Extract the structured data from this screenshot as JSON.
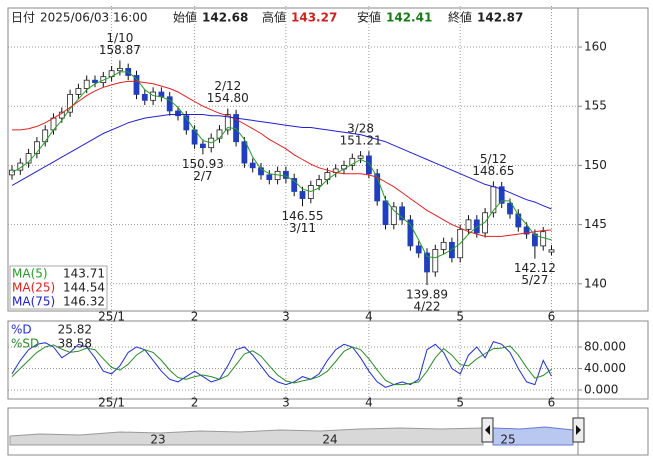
{
  "header": {
    "date_label": "日付",
    "datetime": "2025/06/03 16:00",
    "open_label": "始値",
    "high_label": "高値",
    "low_label": "安値",
    "close_label": "終値"
  },
  "chart_data": [
    {
      "type": "candlestick",
      "categories": [
        null,
        null,
        null,
        null,
        null,
        null,
        null,
        null,
        null,
        null,
        null,
        null,
        "25/1",
        null,
        null,
        null,
        null,
        null,
        null,
        null,
        null,
        null,
        "2",
        null,
        null,
        null,
        null,
        null,
        null,
        null,
        null,
        null,
        null,
        "3",
        null,
        null,
        null,
        null,
        null,
        null,
        null,
        null,
        null,
        "4",
        null,
        null,
        null,
        null,
        null,
        null,
        null,
        null,
        null,
        null,
        "5",
        null,
        null,
        null,
        null,
        null,
        null,
        null,
        null,
        null,
        null,
        "6"
      ],
      "open": [
        149.2,
        149.6,
        150.2,
        151.0,
        152.0,
        153.0,
        154.0,
        154.5,
        156.0,
        156.5,
        157.2,
        157.0,
        157.5,
        158.0,
        158.2,
        157.6,
        156.0,
        155.5,
        156.2,
        155.8,
        154.6,
        154.2,
        153.0,
        151.8,
        151.5,
        152.3,
        153.0,
        154.3,
        152.0,
        150.2,
        149.8,
        149.2,
        148.8,
        149.5,
        148.9,
        147.8,
        147.2,
        148.3,
        148.8,
        149.4,
        149.7,
        150.0,
        150.6,
        150.8,
        149.3,
        147.0,
        145.0,
        146.5,
        145.4,
        143.2,
        142.6,
        141.0,
        142.9,
        143.5,
        142.2,
        144.6,
        145.4,
        144.3,
        146.0,
        148.2,
        146.8,
        145.9,
        144.8,
        144.2,
        143.2,
        142.68
      ],
      "high": [
        150.0,
        150.6,
        151.4,
        152.4,
        153.4,
        154.4,
        154.9,
        156.4,
        156.9,
        157.6,
        157.6,
        157.9,
        158.4,
        158.87,
        158.6,
        158.0,
        156.4,
        156.6,
        156.6,
        156.2,
        155.0,
        154.6,
        153.4,
        152.2,
        152.7,
        153.4,
        154.8,
        154.7,
        152.4,
        150.6,
        150.2,
        149.6,
        149.9,
        149.9,
        149.3,
        148.2,
        148.7,
        149.2,
        149.8,
        150.1,
        150.4,
        151.0,
        151.21,
        151.2,
        149.7,
        147.4,
        146.9,
        146.9,
        145.8,
        143.6,
        143.0,
        143.3,
        143.9,
        143.9,
        145.0,
        145.8,
        145.8,
        146.4,
        148.65,
        148.6,
        147.2,
        146.3,
        145.2,
        144.6,
        144.8,
        143.27
      ],
      "low": [
        148.8,
        149.2,
        149.8,
        150.6,
        151.6,
        152.6,
        153.6,
        154.1,
        155.6,
        156.1,
        156.6,
        156.6,
        157.1,
        157.6,
        157.2,
        155.6,
        155.1,
        155.1,
        155.4,
        154.2,
        153.8,
        152.6,
        151.4,
        150.93,
        151.1,
        151.9,
        152.6,
        151.6,
        149.8,
        149.4,
        148.8,
        148.4,
        148.4,
        148.5,
        147.4,
        146.55,
        146.8,
        147.9,
        148.4,
        149.0,
        149.3,
        149.6,
        150.2,
        148.9,
        146.6,
        144.6,
        144.6,
        145.0,
        142.8,
        142.2,
        139.89,
        140.6,
        142.5,
        141.8,
        141.8,
        144.2,
        143.9,
        143.9,
        145.6,
        146.4,
        145.5,
        144.4,
        143.8,
        142.12,
        142.8,
        142.41
      ],
      "close": [
        149.6,
        150.2,
        151.0,
        152.0,
        153.0,
        154.0,
        154.5,
        156.0,
        156.5,
        157.2,
        157.0,
        157.5,
        158.0,
        158.2,
        157.6,
        156.0,
        155.5,
        156.2,
        155.8,
        154.6,
        154.2,
        153.0,
        151.8,
        151.5,
        152.3,
        153.0,
        154.3,
        152.0,
        150.2,
        149.8,
        149.2,
        148.8,
        149.5,
        148.9,
        147.8,
        147.2,
        148.3,
        148.8,
        149.4,
        149.7,
        150.0,
        150.6,
        150.8,
        149.3,
        147.0,
        145.0,
        146.5,
        145.4,
        143.2,
        142.6,
        141.0,
        142.9,
        143.5,
        142.2,
        144.6,
        145.4,
        144.3,
        146.0,
        148.2,
        146.8,
        145.9,
        144.8,
        144.2,
        143.2,
        144.4,
        142.87
      ],
      "up_color": "#ffffff",
      "down_color": "#1f3fbf",
      "wick_color": "#111111",
      "series": [
        {
          "name": "MA(5)",
          "color": "#2a9a2a",
          "values": [
            149.4,
            149.8,
            150.3,
            151.1,
            152.0,
            153.0,
            153.8,
            154.8,
            155.6,
            156.4,
            156.9,
            157.2,
            157.5,
            157.9,
            157.9,
            157.3,
            156.4,
            155.9,
            155.8,
            155.5,
            154.9,
            154.0,
            153.0,
            152.1,
            151.9,
            152.3,
            153.2,
            153.1,
            152.2,
            150.7,
            149.7,
            149.3,
            149.2,
            149.1,
            148.7,
            148.0,
            147.8,
            148.1,
            148.8,
            149.3,
            149.7,
            150.1,
            150.5,
            150.2,
            149.0,
            147.1,
            146.2,
            145.6,
            145.0,
            143.7,
            142.3,
            142.2,
            142.5,
            142.9,
            143.4,
            144.2,
            144.8,
            145.2,
            146.2,
            147.0,
            147.0,
            145.8,
            145.0,
            144.1,
            143.9,
            143.71
          ]
        },
        {
          "name": "MA(25)",
          "color": "#e02020",
          "values": [
            153.0,
            153.0,
            153.1,
            153.3,
            153.6,
            154.0,
            154.4,
            154.9,
            155.4,
            155.9,
            156.3,
            156.6,
            156.8,
            157.0,
            157.1,
            157.1,
            157.0,
            156.9,
            156.7,
            156.5,
            156.2,
            155.8,
            155.4,
            155.0,
            154.7,
            154.4,
            154.2,
            153.9,
            153.5,
            153.1,
            152.7,
            152.2,
            151.8,
            151.4,
            150.9,
            150.5,
            150.1,
            149.8,
            149.6,
            149.4,
            149.3,
            149.3,
            149.3,
            149.2,
            149.0,
            148.6,
            148.2,
            147.7,
            147.2,
            146.7,
            146.2,
            145.8,
            145.4,
            145.0,
            144.7,
            144.4,
            144.2,
            144.0,
            144.0,
            144.0,
            144.1,
            144.2,
            144.3,
            144.4,
            144.5,
            144.54
          ]
        },
        {
          "name": "MA(75)",
          "color": "#2020d0",
          "values": [
            148.3,
            148.7,
            149.1,
            149.5,
            149.9,
            150.3,
            150.7,
            151.1,
            151.5,
            151.9,
            152.3,
            152.7,
            153.0,
            153.3,
            153.6,
            153.8,
            154.0,
            154.1,
            154.2,
            154.3,
            154.3,
            154.3,
            154.3,
            154.3,
            154.2,
            154.2,
            154.1,
            154.0,
            153.9,
            153.8,
            153.7,
            153.6,
            153.5,
            153.4,
            153.3,
            153.2,
            153.2,
            153.1,
            153.0,
            152.9,
            152.8,
            152.7,
            152.6,
            152.4,
            152.2,
            152.0,
            151.7,
            151.4,
            151.1,
            150.8,
            150.5,
            150.2,
            149.9,
            149.6,
            149.3,
            149.0,
            148.7,
            148.4,
            148.2,
            148.0,
            147.7,
            147.4,
            147.1,
            146.9,
            146.6,
            146.32
          ]
        }
      ],
      "annotations": [
        {
          "date": "1/10",
          "value": "158.87"
        },
        {
          "date": "2/12",
          "value": "154.80"
        },
        {
          "date": "2/7",
          "value": "150.93"
        },
        {
          "date": "3/11",
          "value": "146.55"
        },
        {
          "date": "3/28",
          "value": "151.21"
        },
        {
          "date": "4/22",
          "value": "139.89"
        },
        {
          "date": "5/12",
          "value": "148.65"
        },
        {
          "date": "5/27",
          "value": "142.12"
        }
      ],
      "ylim": [
        137.7,
        163.3
      ],
      "yticks": [
        140,
        145,
        150,
        155,
        160
      ],
      "grid": true
    },
    {
      "type": "line",
      "series": [
        {
          "name": "%D",
          "color": "#2030d0",
          "values": [
            30,
            55,
            75,
            85,
            88,
            80,
            60,
            70,
            85,
            80,
            60,
            35,
            30,
            45,
            70,
            80,
            75,
            55,
            35,
            20,
            15,
            25,
            35,
            25,
            15,
            20,
            45,
            75,
            80,
            65,
            45,
            25,
            15,
            10,
            15,
            25,
            20,
            30,
            55,
            75,
            85,
            80,
            60,
            35,
            15,
            5,
            10,
            15,
            10,
            20,
            75,
            85,
            70,
            40,
            30,
            65,
            80,
            60,
            90,
            85,
            70,
            40,
            15,
            10,
            55,
            25.82
          ]
        },
        {
          "name": "%SD",
          "color": "#2a8a2a",
          "values": [
            25,
            40,
            55,
            70,
            80,
            84,
            76,
            70,
            72,
            78,
            75,
            58,
            42,
            37,
            48,
            65,
            75,
            70,
            55,
            37,
            23,
            20,
            25,
            28,
            25,
            20,
            27,
            47,
            67,
            73,
            63,
            45,
            28,
            17,
            13,
            17,
            20,
            25,
            35,
            53,
            72,
            80,
            75,
            58,
            37,
            18,
            10,
            10,
            12,
            15,
            35,
            60,
            77,
            65,
            47,
            45,
            58,
            68,
            77,
            78,
            82,
            65,
            42,
            22,
            27,
            38.58
          ]
        }
      ],
      "ylim": [
        -14.9,
        124.7
      ],
      "yticks": [
        {
          "value": 0,
          "label": "0.000"
        },
        {
          "value": 40,
          "label": "40.000"
        },
        {
          "value": 80,
          "label": "80.000"
        }
      ],
      "grid": true
    }
  ],
  "navigator": {
    "labels": [
      "23",
      "24",
      "25"
    ]
  }
}
